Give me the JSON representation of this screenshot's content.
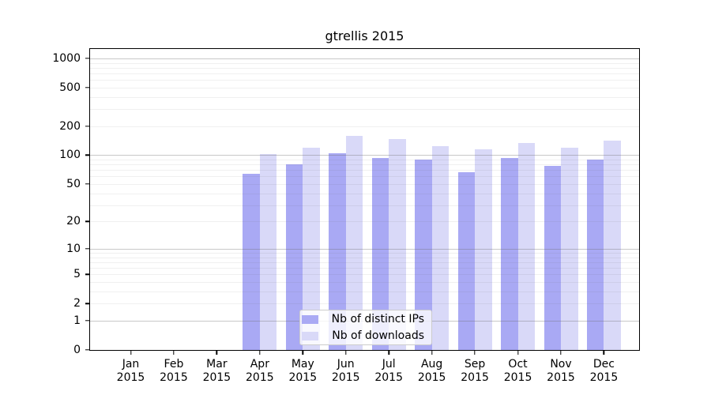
{
  "title": "gtrellis 2015",
  "chart_data": {
    "type": "bar",
    "title": "gtrellis 2015",
    "categories": [
      "Jan 2015",
      "Feb 2015",
      "Mar 2015",
      "Apr 2015",
      "May 2015",
      "Jun 2015",
      "Jul 2015",
      "Aug 2015",
      "Sep 2015",
      "Oct 2015",
      "Nov 2015",
      "Dec 2015"
    ],
    "months": [
      "Jan",
      "Feb",
      "Mar",
      "Apr",
      "May",
      "Jun",
      "Jul",
      "Aug",
      "Sep",
      "Oct",
      "Nov",
      "Dec"
    ],
    "year": "2015",
    "series": [
      {
        "name": "Nb of distinct IPs",
        "color": "#a9a9f4",
        "values": [
          0,
          0,
          0,
          64,
          81,
          105,
          93,
          90,
          66,
          93,
          77,
          90
        ]
      },
      {
        "name": "Nb of downloads",
        "color": "#d9d9f8",
        "values": [
          0,
          0,
          0,
          103,
          120,
          158,
          147,
          125,
          115,
          134,
          119,
          141
        ]
      }
    ],
    "y_axis": {
      "ticks": [
        0,
        1,
        2,
        5,
        10,
        20,
        50,
        100,
        200,
        500,
        1000
      ],
      "scale": "log1p",
      "max": 1250
    },
    "x_axis": {
      "tick_label_lines": 2
    },
    "grid": {
      "shown": true,
      "major_at": [
        1,
        10,
        100,
        1000
      ],
      "minor_per_decade": [
        2,
        3,
        4,
        5,
        6,
        7,
        8,
        9
      ],
      "drawn_over_bars": true
    },
    "legend": {
      "position": "bottom-center",
      "background_opacity": 0.8
    }
  }
}
